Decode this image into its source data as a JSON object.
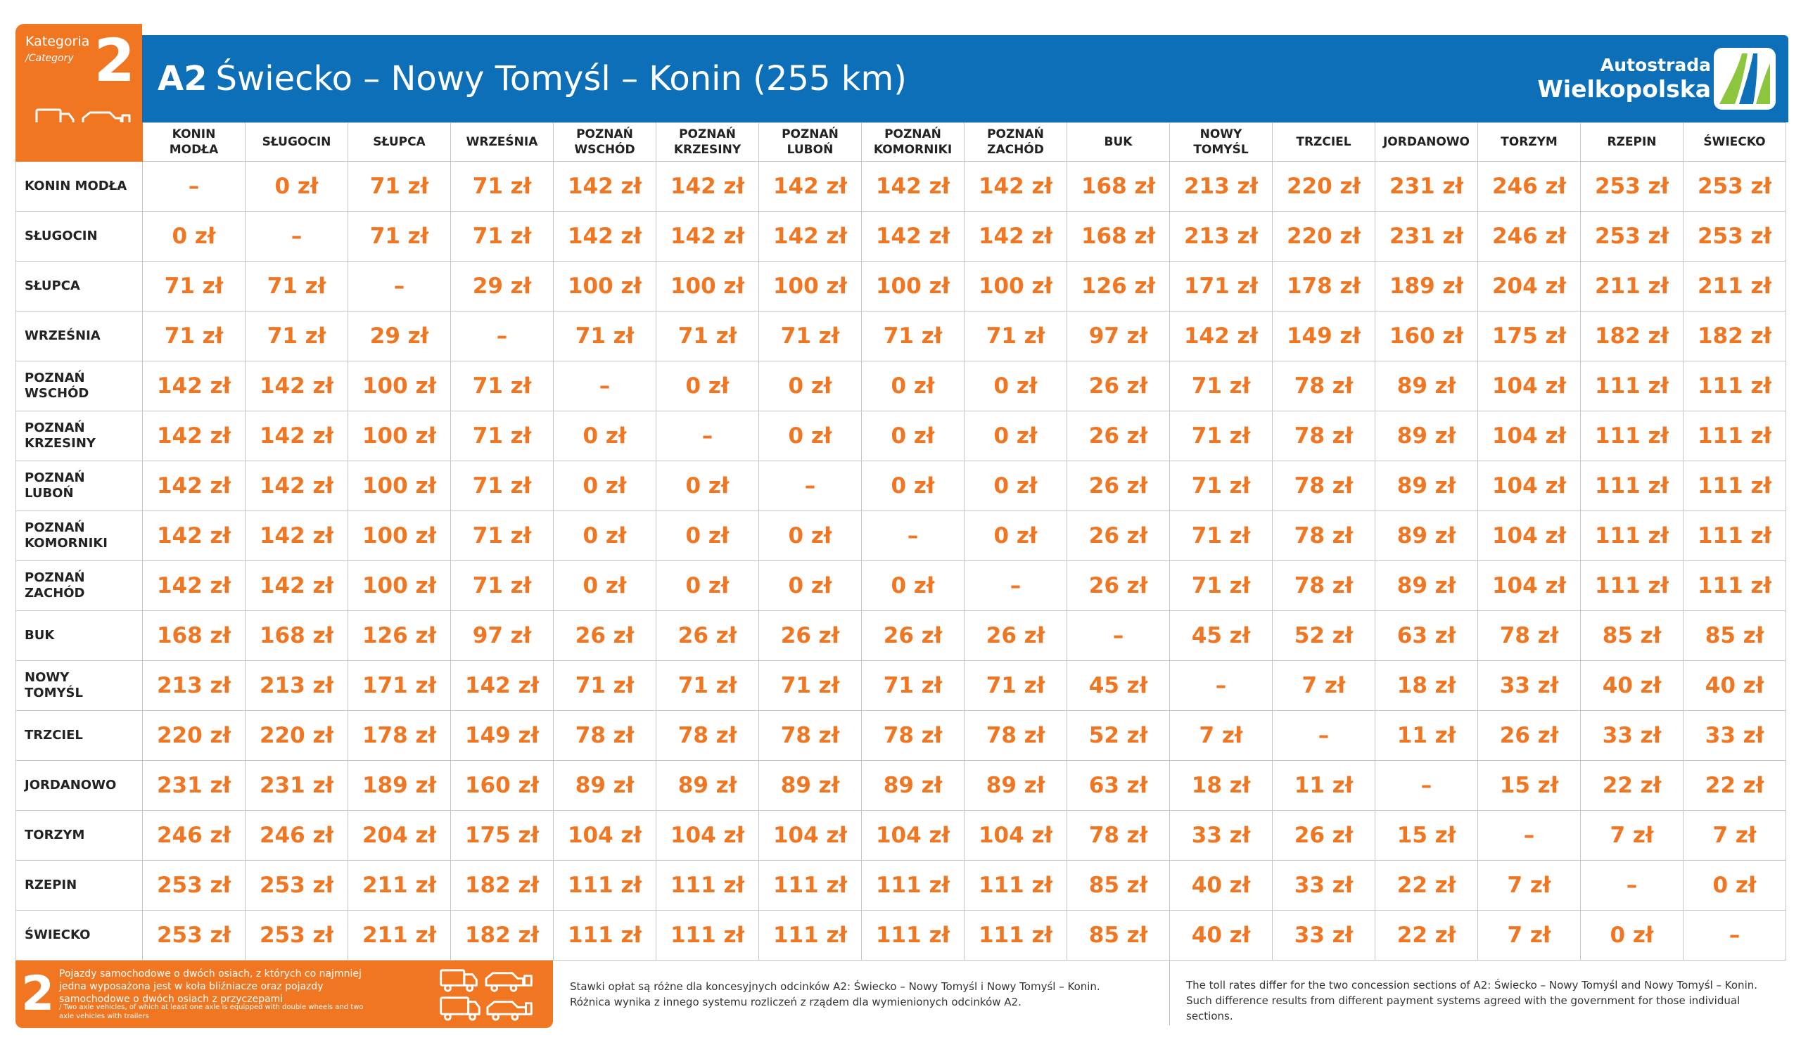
{
  "category": {
    "label": "Kategoria",
    "label_en": "/Category",
    "number": "2"
  },
  "header": {
    "road": "A2",
    "route": "Świecko – Nowy Tomyśl – Konin (255 km)"
  },
  "brand": {
    "line1": "Autostrada",
    "line2": "Wielkopolska"
  },
  "columns": [
    [
      "KONIN",
      "MODŁA"
    ],
    [
      "SŁUGOCIN"
    ],
    [
      "SŁUPCA"
    ],
    [
      "WRZEŚNIA"
    ],
    [
      "POZNAŃ",
      "WSCHÓD"
    ],
    [
      "POZNAŃ",
      "KRZESINY"
    ],
    [
      "POZNAŃ",
      "LUBOŃ"
    ],
    [
      "POZNAŃ",
      "KOMORNIKI"
    ],
    [
      "POZNAŃ",
      "ZACHÓD"
    ],
    [
      "BUK"
    ],
    [
      "NOWY",
      "TOMYŚL"
    ],
    [
      "TRZCIEL"
    ],
    [
      "JORDANOWO"
    ],
    [
      "TORZYM"
    ],
    [
      "RZEPIN"
    ],
    [
      "ŚWIECKO"
    ]
  ],
  "rows": [
    {
      "name": [
        "KONIN MODŁA"
      ],
      "values": [
        "–",
        "0 zł",
        "71 zł",
        "71 zł",
        "142 zł",
        "142 zł",
        "142 zł",
        "142 zł",
        "142 zł",
        "168 zł",
        "213 zł",
        "220 zł",
        "231 zł",
        "246 zł",
        "253 zł",
        "253 zł"
      ]
    },
    {
      "name": [
        "SŁUGOCIN"
      ],
      "values": [
        "0 zł",
        "–",
        "71 zł",
        "71 zł",
        "142 zł",
        "142 zł",
        "142 zł",
        "142 zł",
        "142 zł",
        "168 zł",
        "213 zł",
        "220 zł",
        "231 zł",
        "246 zł",
        "253 zł",
        "253 zł"
      ]
    },
    {
      "name": [
        "SŁUPCA"
      ],
      "values": [
        "71 zł",
        "71 zł",
        "–",
        "29 zł",
        "100 zł",
        "100 zł",
        "100 zł",
        "100 zł",
        "100 zł",
        "126 zł",
        "171 zł",
        "178 zł",
        "189 zł",
        "204 zł",
        "211 zł",
        "211 zł"
      ]
    },
    {
      "name": [
        "WRZEŚNIA"
      ],
      "values": [
        "71 zł",
        "71 zł",
        "29 zł",
        "–",
        "71 zł",
        "71 zł",
        "71 zł",
        "71 zł",
        "71 zł",
        "97 zł",
        "142 zł",
        "149 zł",
        "160 zł",
        "175 zł",
        "182 zł",
        "182 zł"
      ]
    },
    {
      "name": [
        "POZNAŃ",
        "WSCHÓD"
      ],
      "values": [
        "142 zł",
        "142 zł",
        "100 zł",
        "71 zł",
        "–",
        "0 zł",
        "0 zł",
        "0 zł",
        "0 zł",
        "26 zł",
        "71 zł",
        "78 zł",
        "89 zł",
        "104 zł",
        "111 zł",
        "111 zł"
      ]
    },
    {
      "name": [
        "POZNAŃ",
        "KRZESINY"
      ],
      "values": [
        "142 zł",
        "142 zł",
        "100 zł",
        "71 zł",
        "0 zł",
        "–",
        "0 zł",
        "0 zł",
        "0 zł",
        "26 zł",
        "71 zł",
        "78 zł",
        "89 zł",
        "104 zł",
        "111 zł",
        "111 zł"
      ]
    },
    {
      "name": [
        "POZNAŃ",
        "LUBOŃ"
      ],
      "values": [
        "142 zł",
        "142 zł",
        "100 zł",
        "71 zł",
        "0 zł",
        "0 zł",
        "–",
        "0 zł",
        "0 zł",
        "26 zł",
        "71 zł",
        "78 zł",
        "89 zł",
        "104 zł",
        "111 zł",
        "111 zł"
      ]
    },
    {
      "name": [
        "POZNAŃ",
        "KOMORNIKI"
      ],
      "values": [
        "142 zł",
        "142 zł",
        "100 zł",
        "71 zł",
        "0 zł",
        "0 zł",
        "0 zł",
        "–",
        "0 zł",
        "26 zł",
        "71 zł",
        "78 zł",
        "89 zł",
        "104 zł",
        "111 zł",
        "111 zł"
      ]
    },
    {
      "name": [
        "POZNAŃ",
        "ZACHÓD"
      ],
      "values": [
        "142 zł",
        "142 zł",
        "100 zł",
        "71 zł",
        "0 zł",
        "0 zł",
        "0 zł",
        "0 zł",
        "–",
        "26 zł",
        "71 zł",
        "78 zł",
        "89 zł",
        "104 zł",
        "111 zł",
        "111 zł"
      ]
    },
    {
      "name": [
        "BUK"
      ],
      "values": [
        "168 zł",
        "168 zł",
        "126 zł",
        "97 zł",
        "26 zł",
        "26 zł",
        "26 zł",
        "26 zł",
        "26 zł",
        "–",
        "45 zł",
        "52 zł",
        "63 zł",
        "78 zł",
        "85 zł",
        "85 zł"
      ]
    },
    {
      "name": [
        "NOWY",
        "TOMYŚL"
      ],
      "values": [
        "213 zł",
        "213 zł",
        "171 zł",
        "142 zł",
        "71 zł",
        "71 zł",
        "71 zł",
        "71 zł",
        "71 zł",
        "45 zł",
        "–",
        "7 zł",
        "18 zł",
        "33 zł",
        "40 zł",
        "40 zł"
      ]
    },
    {
      "name": [
        "TRZCIEL"
      ],
      "values": [
        "220 zł",
        "220 zł",
        "178 zł",
        "149 zł",
        "78 zł",
        "78 zł",
        "78 zł",
        "78 zł",
        "78 zł",
        "52 zł",
        "7 zł",
        "–",
        "11 zł",
        "26 zł",
        "33 zł",
        "33 zł"
      ]
    },
    {
      "name": [
        "JORDANOWO"
      ],
      "values": [
        "231 zł",
        "231 zł",
        "189 zł",
        "160 zł",
        "89 zł",
        "89 zł",
        "89 zł",
        "89 zł",
        "89 zł",
        "63 zł",
        "18 zł",
        "11 zł",
        "–",
        "15 zł",
        "22 zł",
        "22 zł"
      ]
    },
    {
      "name": [
        "TORZYM"
      ],
      "values": [
        "246 zł",
        "246 zł",
        "204 zł",
        "175 zł",
        "104 zł",
        "104 zł",
        "104 zł",
        "104 zł",
        "104 zł",
        "78 zł",
        "33 zł",
        "26 zł",
        "15 zł",
        "–",
        "7 zł",
        "7 zł"
      ]
    },
    {
      "name": [
        "RZEPIN"
      ],
      "values": [
        "253 zł",
        "253 zł",
        "211 zł",
        "182 zł",
        "111 zł",
        "111 zł",
        "111 zł",
        "111 zł",
        "111 zł",
        "85 zł",
        "40 zł",
        "33 zł",
        "22 zł",
        "7 zł",
        "–",
        "0 zł"
      ]
    },
    {
      "name": [
        "ŚWIECKO"
      ],
      "values": [
        "253 zł",
        "253 zł",
        "211 zł",
        "182 zł",
        "111 zł",
        "111 zł",
        "111 zł",
        "111 zł",
        "111 zł",
        "85 zł",
        "40 zł",
        "33 zł",
        "22 zł",
        "7 zł",
        "0 zł",
        "–"
      ]
    }
  ],
  "footer": {
    "number": "2",
    "description_pl": "Pojazdy samochodowe o dwóch osiach, z których co najmniej jedna wyposażona jest w koła bliźniacze oraz pojazdy samochodowe o dwóch osiach z przyczepami",
    "description_en": "/ Two axle vehicles, of which at least one axle is equipped with double wheels and two axle vehicles with trailers",
    "note_pl_1": "Stawki opłat są różne dla koncesyjnych odcinków A2: Świecko – Nowy Tomyśl i Nowy Tomyśl – Konin.",
    "note_pl_2": "Różnica wynika z innego systemu rozliczeń z rządem dla wymienionych odcinków A2.",
    "note_en_1": "The toll rates differ for the two concession sections of A2: Świecko – Nowy Tomyśl and Nowy Tomyśl – Konin.",
    "note_en_2": "Such difference results from different payment systems agreed with the government for those individual sections."
  },
  "colors": {
    "orange": "#f07622",
    "blue": "#0c6fb8",
    "logo_green": "#8cc63f"
  },
  "icons": {
    "category_vehicles": "two-axle-vehicles-icon",
    "logo": "autostrada-logo-icon"
  }
}
